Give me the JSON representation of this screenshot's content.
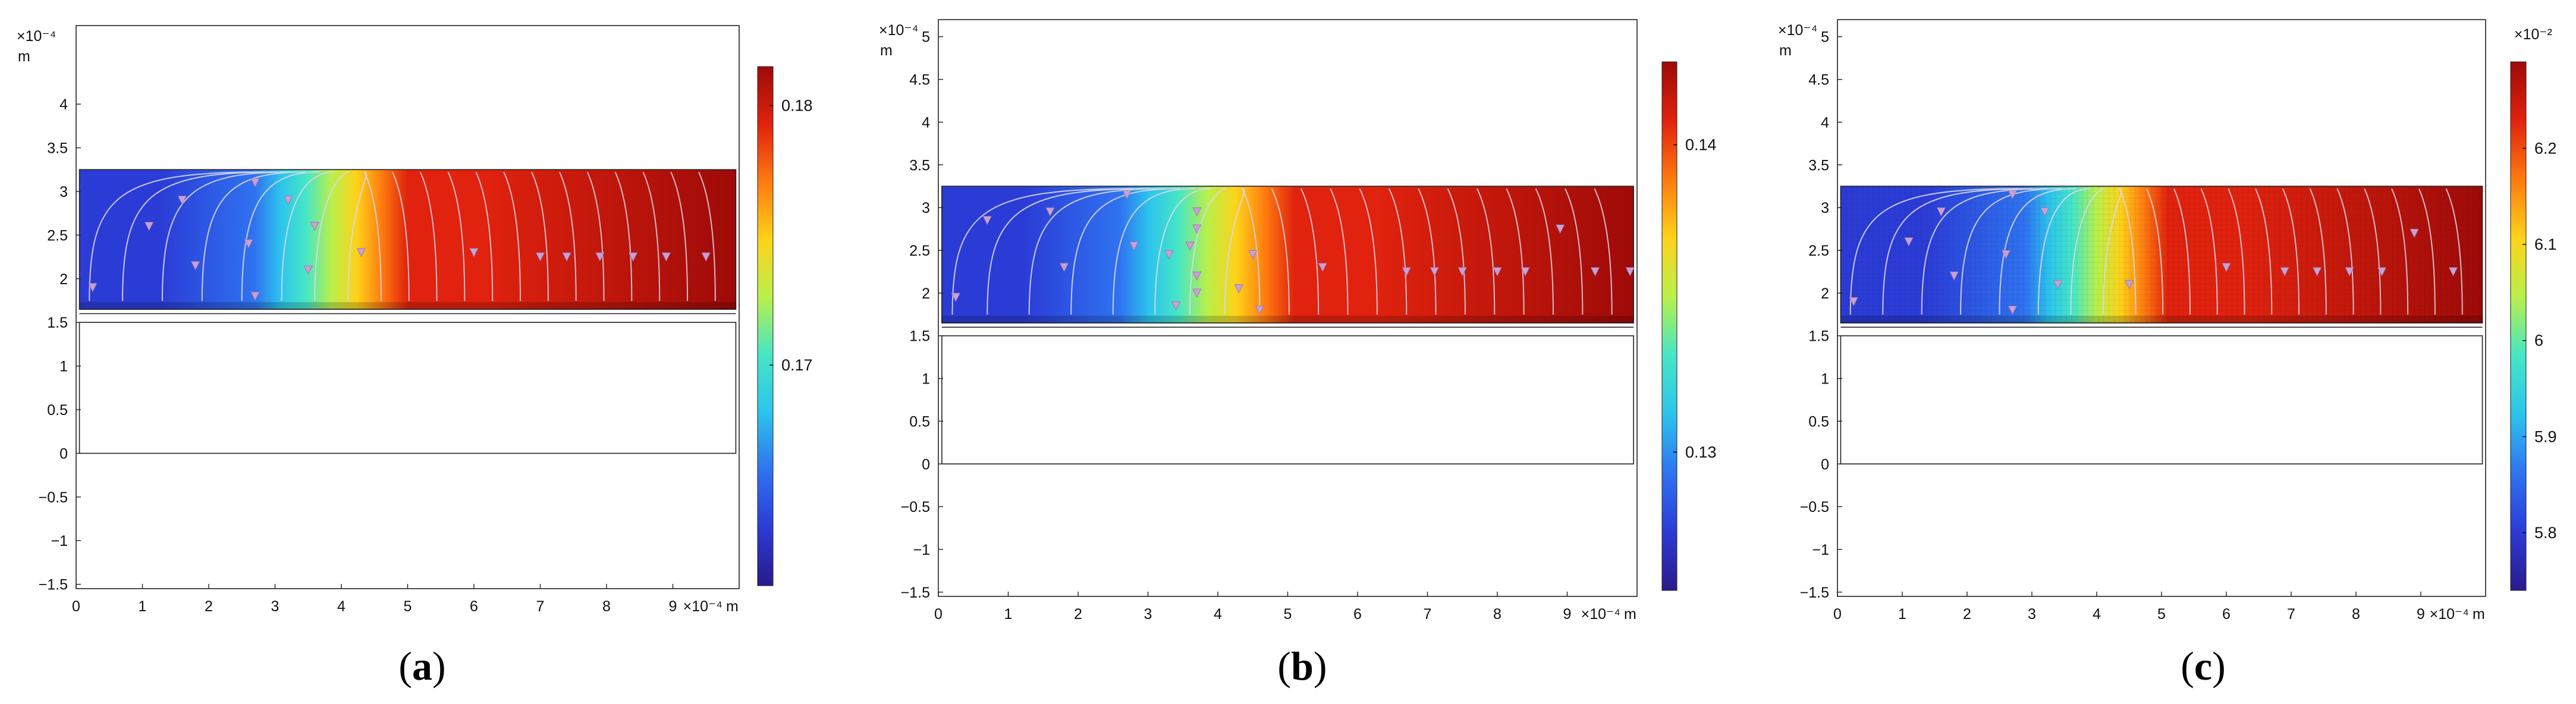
{
  "colormap": [
    "#2a1a8c",
    "#2b3bd6",
    "#2f73f0",
    "#2cc4ec",
    "#46e6c6",
    "#b9f04a",
    "#ffd21a",
    "#ff7a10",
    "#e0220e",
    "#9e0a08"
  ],
  "panel_border_color": "#222222",
  "streamline_color": "#d8d8ea",
  "arrow_color": "#c8a0d2",
  "chart_data": [
    {
      "type": "heatmap",
      "panel_label": "(a)",
      "x_ticks": [
        "0",
        "1",
        "2",
        "3",
        "4",
        "5",
        "6",
        "7",
        "8",
        "9"
      ],
      "y_ticks": [
        "−1.5",
        "−1",
        "−0.5",
        "0",
        "0.5",
        "1",
        "1.5",
        "2",
        "2.5",
        "3",
        "3.5",
        "4"
      ],
      "x_scale_label": "×10⁻⁴",
      "x_unit": "m",
      "y_scale_label": "×10⁻⁴",
      "y_unit": "m",
      "xlim": [
        0,
        10
      ],
      "ylim": [
        -1.55,
        4.9
      ],
      "field_region_y": [
        1.65,
        3.25
      ],
      "transition_x": [
        2.7,
        5.0
      ],
      "lower_box_y": [
        0,
        1.5
      ],
      "divider_y": 1.6,
      "colorbar_ticks": [
        "0.17",
        "0.18"
      ],
      "colorbar_tick_values": [
        0.17,
        0.18
      ],
      "colorbar_range": [
        0.1615,
        0.1815
      ],
      "colorbar_scale_label": "",
      "colorbar_orientation": "vertical-right",
      "mesh_visible": false,
      "arrow_heads": [
        [
          2.7,
          3.1
        ],
        [
          1.6,
          2.9
        ],
        [
          1.1,
          2.6
        ],
        [
          3.2,
          2.9
        ],
        [
          2.6,
          2.4
        ],
        [
          1.8,
          2.15
        ],
        [
          3.5,
          2.1
        ],
        [
          2.7,
          1.8
        ],
        [
          0.25,
          1.9
        ],
        [
          3.6,
          2.6
        ],
        [
          4.3,
          2.3
        ],
        [
          6.0,
          2.3
        ],
        [
          7.0,
          2.25
        ],
        [
          7.4,
          2.25
        ],
        [
          7.9,
          2.25
        ],
        [
          8.4,
          2.25
        ],
        [
          8.9,
          2.25
        ],
        [
          9.5,
          2.25
        ]
      ]
    },
    {
      "type": "heatmap",
      "panel_label": "(b)",
      "x_ticks": [
        "0",
        "1",
        "2",
        "3",
        "4",
        "5",
        "6",
        "7",
        "8",
        "9"
      ],
      "y_ticks": [
        "−1.5",
        "−1",
        "−0.5",
        "0",
        "0.5",
        "1",
        "1.5",
        "2",
        "2.5",
        "3",
        "3.5",
        "4",
        "4.5",
        "5"
      ],
      "x_scale_label": "×10⁻⁴",
      "x_unit": "m",
      "y_scale_label": "×10⁻⁴",
      "y_unit": "m",
      "xlim": [
        0,
        10
      ],
      "ylim": [
        -1.55,
        5.2
      ],
      "field_region_y": [
        1.65,
        3.25
      ],
      "transition_x": [
        2.6,
        5.1
      ],
      "lower_box_y": [
        0,
        1.5
      ],
      "divider_y": 1.6,
      "colorbar_ticks": [
        "0.13",
        "0.14"
      ],
      "colorbar_tick_values": [
        0.13,
        0.14
      ],
      "colorbar_range": [
        0.1255,
        0.1427
      ],
      "colorbar_scale_label": "",
      "colorbar_orientation": "vertical-right",
      "mesh_visible": false,
      "arrow_heads": [
        [
          2.7,
          3.15
        ],
        [
          1.6,
          2.95
        ],
        [
          0.7,
          2.85
        ],
        [
          3.7,
          2.95
        ],
        [
          3.7,
          2.75
        ],
        [
          2.8,
          2.55
        ],
        [
          1.8,
          2.3
        ],
        [
          3.6,
          2.55
        ],
        [
          3.3,
          2.45
        ],
        [
          4.5,
          2.45
        ],
        [
          3.7,
          2.2
        ],
        [
          4.3,
          2.05
        ],
        [
          3.7,
          2.0
        ],
        [
          3.4,
          1.85
        ],
        [
          4.6,
          1.8
        ],
        [
          0.25,
          1.95
        ],
        [
          5.5,
          2.3
        ],
        [
          6.7,
          2.25
        ],
        [
          7.1,
          2.25
        ],
        [
          7.5,
          2.25
        ],
        [
          8.0,
          2.25
        ],
        [
          8.4,
          2.25
        ],
        [
          8.9,
          2.75
        ],
        [
          9.4,
          2.25
        ],
        [
          9.9,
          2.25
        ]
      ]
    },
    {
      "type": "heatmap",
      "panel_label": "(c)",
      "x_ticks": [
        "0",
        "1",
        "2",
        "3",
        "4",
        "5",
        "6",
        "7",
        "8",
        "9"
      ],
      "y_ticks": [
        "−1.5",
        "−1",
        "−0.5",
        "0",
        "0.5",
        "1",
        "1.5",
        "2",
        "2.5",
        "3",
        "3.5",
        "4",
        "4.5",
        "5"
      ],
      "x_scale_label": "×10⁻⁴",
      "x_unit": "m",
      "y_scale_label": "×10⁻⁴",
      "y_unit": "m",
      "xlim": [
        0,
        10
      ],
      "ylim": [
        -1.55,
        5.2
      ],
      "field_region_y": [
        1.65,
        3.25
      ],
      "transition_x": [
        2.9,
        5.1
      ],
      "lower_box_y": [
        0,
        1.5
      ],
      "divider_y": 1.6,
      "colorbar_ticks": [
        "5.8",
        "5.9",
        "6",
        "6.1",
        "6.2"
      ],
      "colorbar_tick_values": [
        5.8,
        5.9,
        6.0,
        6.1,
        6.2
      ],
      "colorbar_range": [
        5.74,
        6.29
      ],
      "colorbar_scale_label": "×10⁻²",
      "colorbar_orientation": "vertical-right",
      "mesh_visible": true,
      "arrow_heads": [
        [
          2.7,
          3.15
        ],
        [
          1.6,
          2.95
        ],
        [
          1.1,
          2.6
        ],
        [
          3.2,
          2.95
        ],
        [
          2.6,
          2.45
        ],
        [
          1.8,
          2.2
        ],
        [
          3.4,
          2.1
        ],
        [
          2.7,
          1.8
        ],
        [
          0.25,
          1.9
        ],
        [
          4.5,
          2.1
        ],
        [
          6.0,
          2.3
        ],
        [
          6.9,
          2.25
        ],
        [
          7.4,
          2.25
        ],
        [
          7.9,
          2.25
        ],
        [
          8.4,
          2.25
        ],
        [
          8.9,
          2.7
        ],
        [
          9.5,
          2.25
        ]
      ]
    }
  ]
}
